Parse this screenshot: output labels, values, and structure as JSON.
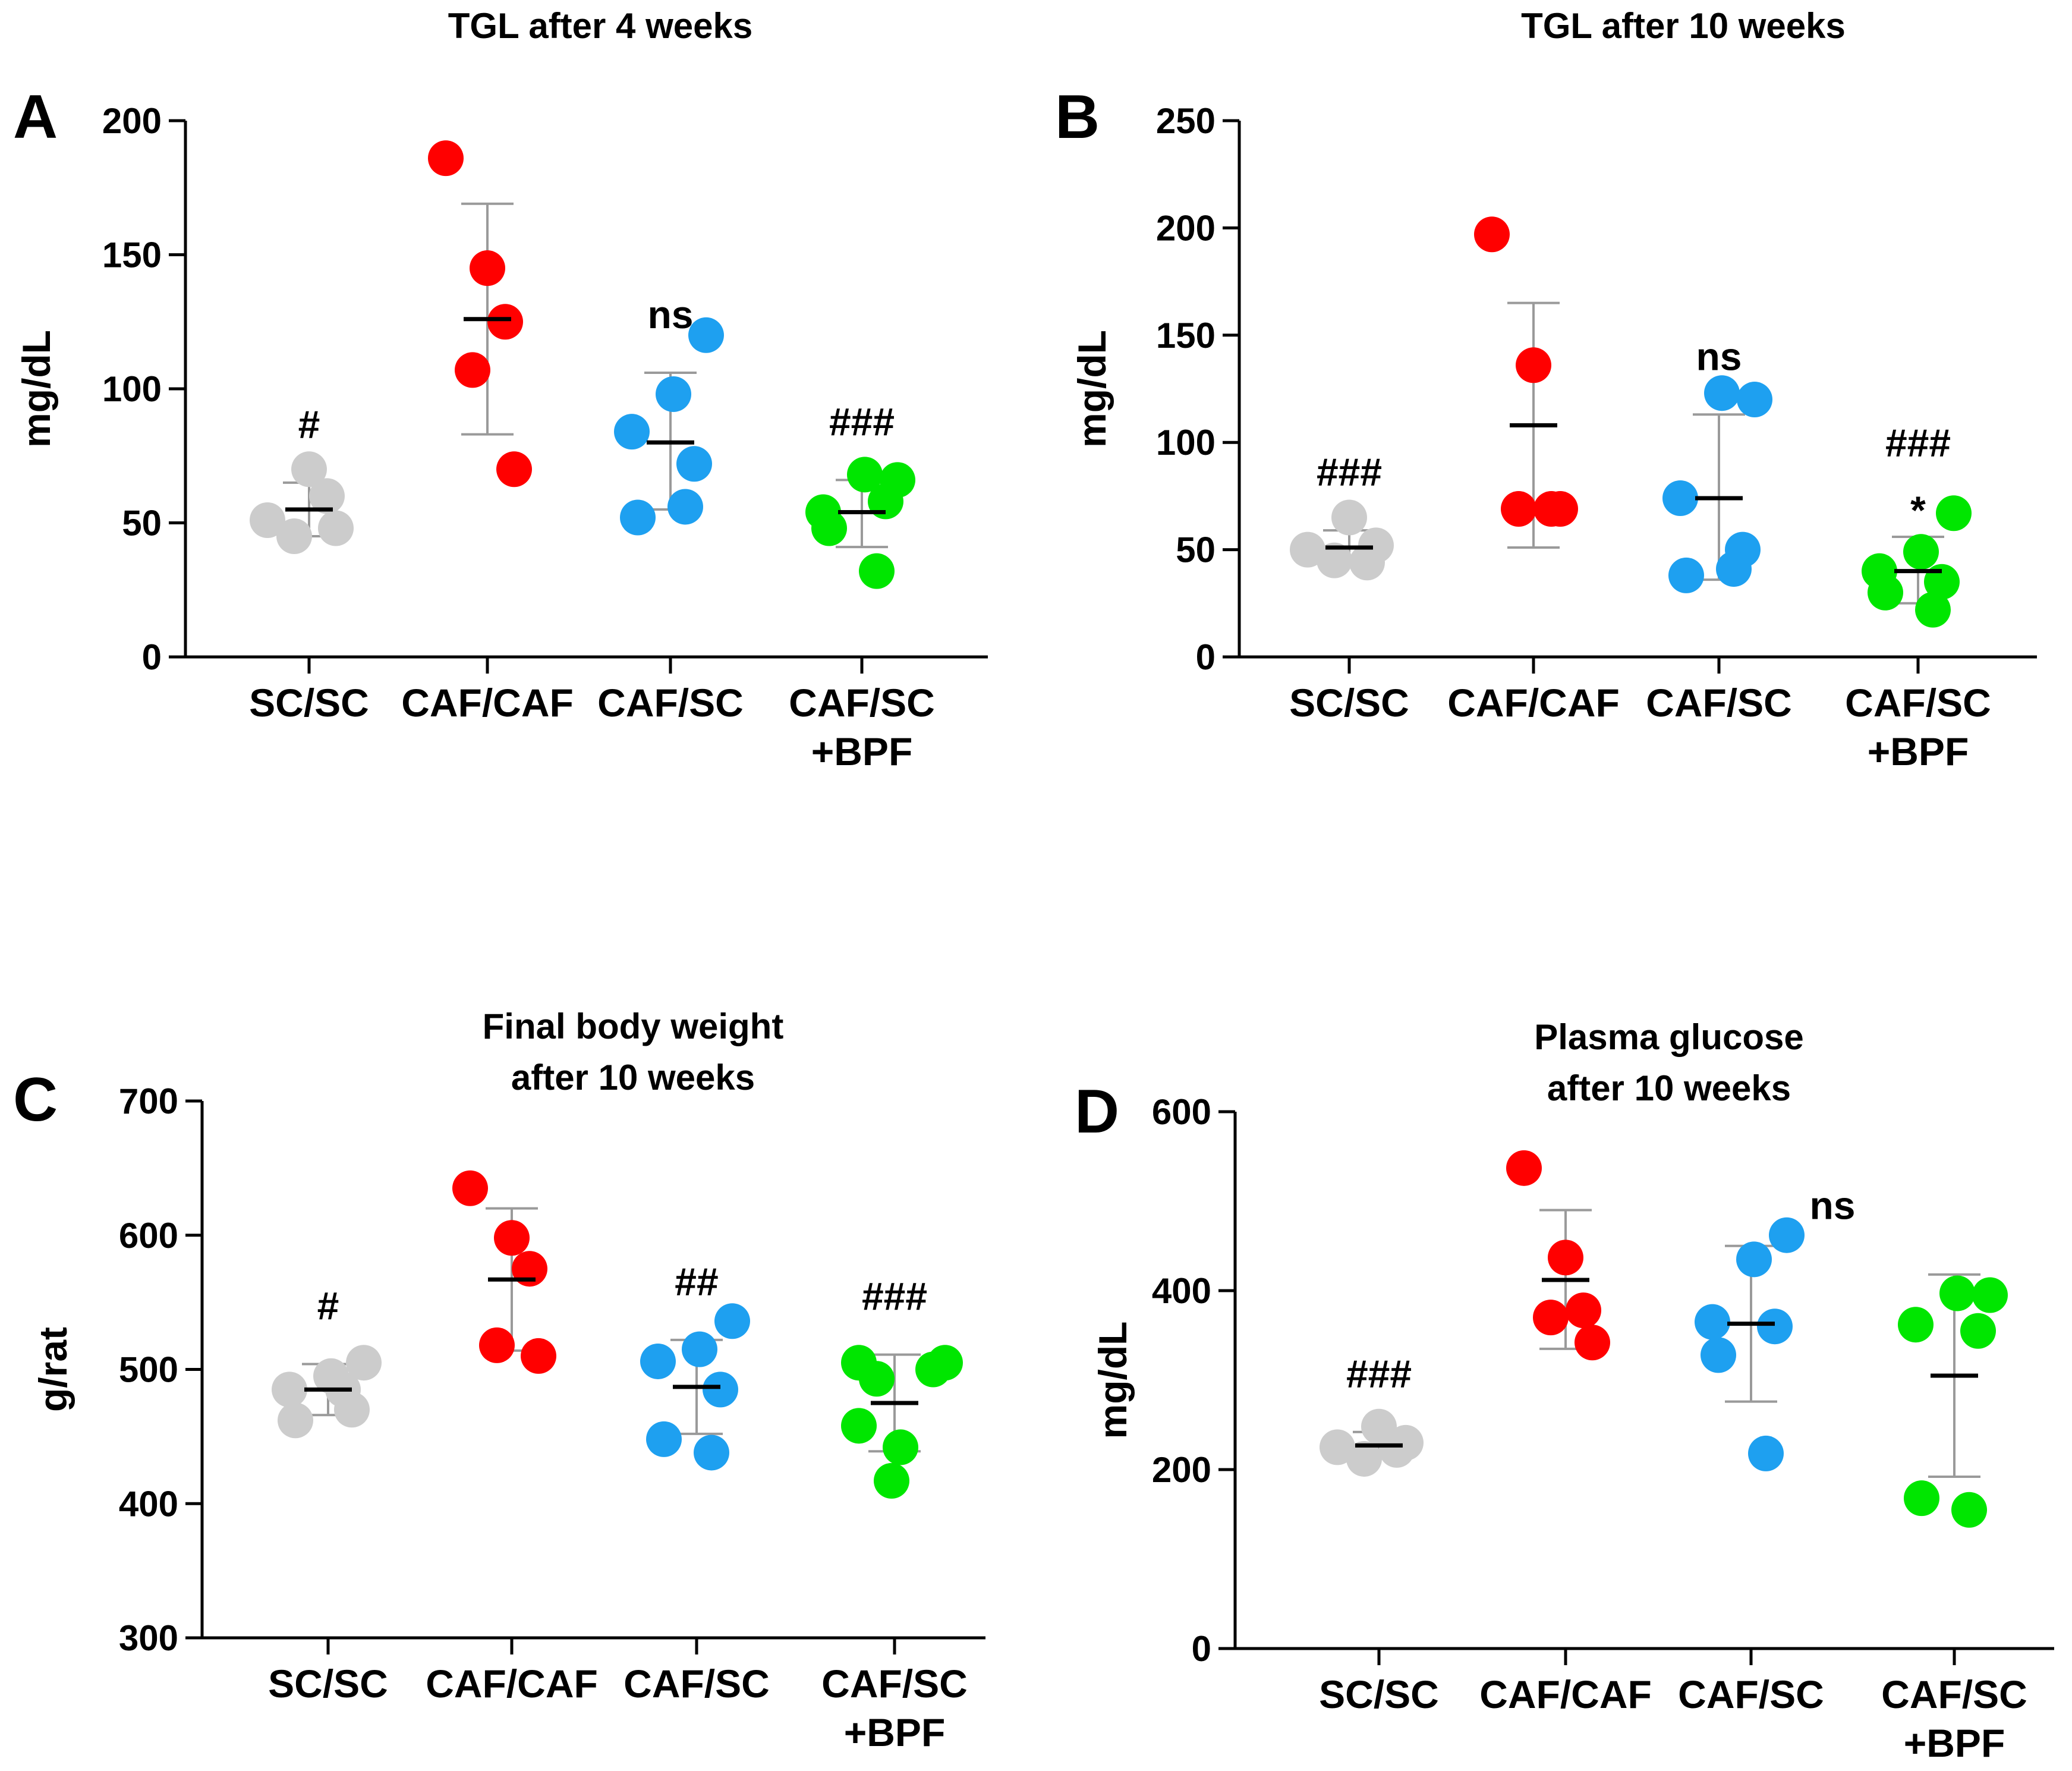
{
  "chart_data": [
    {
      "id": "A",
      "panel_label": "A",
      "type": "scatter",
      "title": [
        "TGL after 4 weeks"
      ],
      "ylabel": "mg/dL",
      "ylim": [
        0,
        200
      ],
      "yticks": [
        0,
        50,
        100,
        150,
        200
      ],
      "categories": [
        [
          "SC/SC"
        ],
        [
          "CAF/CAF"
        ],
        [
          "CAF/SC"
        ],
        [
          "CAF/SC",
          "+BPF"
        ]
      ],
      "colors": [
        "#cccccc",
        "#ff0000",
        "#1ea0f0",
        "#00e600"
      ],
      "series": [
        {
          "name": "SC/SC",
          "points": [
            51,
            70,
            60,
            45,
            48
          ],
          "mean": 55,
          "err": [
            45,
            65
          ],
          "annotations": [
            "#"
          ]
        },
        {
          "name": "CAF/CAF",
          "points": [
            186,
            145,
            125,
            107,
            70
          ],
          "mean": 126,
          "err": [
            83,
            169
          ],
          "annotations": []
        },
        {
          "name": "CAF/SC",
          "points": [
            120,
            98,
            84,
            72,
            52,
            56
          ],
          "mean": 80,
          "err": [
            55,
            106
          ],
          "annotations": [
            "ns"
          ]
        },
        {
          "name": "CAF/SC +BPF",
          "points": [
            66,
            68,
            54,
            58,
            48,
            32
          ],
          "mean": 54,
          "err": [
            41,
            66
          ],
          "annotations": [
            "###"
          ]
        }
      ]
    },
    {
      "id": "B",
      "panel_label": "B",
      "type": "scatter",
      "title": [
        "TGL after 10 weeks"
      ],
      "ylabel": "mg/dL",
      "ylim": [
        0,
        250
      ],
      "yticks": [
        0,
        50,
        100,
        150,
        200,
        250
      ],
      "categories": [
        [
          "SC/SC"
        ],
        [
          "CAF/CAF"
        ],
        [
          "CAF/SC"
        ],
        [
          "CAF/SC",
          "+BPF"
        ]
      ],
      "colors": [
        "#cccccc",
        "#ff0000",
        "#1ea0f0",
        "#00e600"
      ],
      "series": [
        {
          "name": "SC/SC",
          "points": [
            50,
            65,
            44,
            45,
            52
          ],
          "mean": 51,
          "err": [
            43,
            59
          ],
          "annotations": [
            "###"
          ]
        },
        {
          "name": "CAF/CAF",
          "points": [
            197,
            136,
            69,
            69,
            69
          ],
          "mean": 108,
          "err": [
            51,
            165
          ],
          "annotations": []
        },
        {
          "name": "CAF/SC",
          "points": [
            120,
            123,
            74,
            50,
            38,
            41
          ],
          "mean": 74,
          "err": [
            36,
            113
          ],
          "annotations": [
            "ns"
          ]
        },
        {
          "name": "CAF/SC +BPF",
          "points": [
            67,
            49,
            40,
            35,
            30,
            22
          ],
          "mean": 40,
          "err": [
            25,
            56
          ],
          "annotations": [
            "###",
            "*"
          ]
        }
      ]
    },
    {
      "id": "C",
      "panel_label": "C",
      "type": "scatter",
      "title": [
        "Final body weight",
        "after 10 weeks"
      ],
      "ylabel": "g/rat",
      "ylim": [
        300,
        700
      ],
      "yticks": [
        300,
        400,
        500,
        600,
        700
      ],
      "categories": [
        [
          "SC/SC"
        ],
        [
          "CAF/CAF"
        ],
        [
          "CAF/SC"
        ],
        [
          "CAF/SC",
          "+BPF"
        ]
      ],
      "colors": [
        "#cccccc",
        "#ff0000",
        "#1ea0f0",
        "#00e600"
      ],
      "series": [
        {
          "name": "SC/SC",
          "points": [
            505,
            495,
            485,
            470,
            462,
            485
          ],
          "mean": 485,
          "err": [
            466,
            504
          ],
          "annotations": [
            "#"
          ]
        },
        {
          "name": "CAF/CAF",
          "points": [
            635,
            598,
            575,
            518,
            510
          ],
          "mean": 567,
          "err": [
            514,
            620
          ],
          "annotations": []
        },
        {
          "name": "CAF/SC",
          "points": [
            536,
            515,
            506,
            485,
            448,
            438
          ],
          "mean": 487,
          "err": [
            452,
            522
          ],
          "annotations": [
            "##"
          ]
        },
        {
          "name": "CAF/SC +BPF",
          "points": [
            505,
            505,
            500,
            493,
            458,
            442,
            417
          ],
          "mean": 475,
          "err": [
            439,
            511
          ],
          "annotations": [
            "###"
          ]
        }
      ]
    },
    {
      "id": "D",
      "panel_label": "D",
      "type": "scatter",
      "title": [
        "Plasma glucose",
        "after 10 weeks"
      ],
      "ylabel": "mg/dL",
      "ylim": [
        0,
        600
      ],
      "yticks": [
        0,
        200,
        400,
        600
      ],
      "categories": [
        [
          "SC/SC"
        ],
        [
          "CAF/CAF"
        ],
        [
          "CAF/SC"
        ],
        [
          "CAF/SC",
          "+BPF"
        ]
      ],
      "colors": [
        "#cccccc",
        "#ff0000",
        "#1ea0f0",
        "#00e600"
      ],
      "series": [
        {
          "name": "SC/SC",
          "points": [
            225,
            248,
            222,
            212,
            230
          ],
          "mean": 227,
          "err": [
            213,
            242
          ],
          "annotations": [
            "###"
          ]
        },
        {
          "name": "CAF/CAF",
          "points": [
            537,
            437,
            378,
            370,
            342
          ],
          "mean": 412,
          "err": [
            335,
            490
          ],
          "annotations": []
        },
        {
          "name": "CAF/SC",
          "points": [
            462,
            435,
            365,
            360,
            328,
            218
          ],
          "mean": 363,
          "err": [
            276,
            450
          ],
          "annotations": []
        },
        {
          "name": "CAF/SC +BPF",
          "points": [
            395,
            397,
            362,
            355,
            168,
            155
          ],
          "mean": 305,
          "err": [
            192,
            418
          ],
          "annotations": []
        }
      ],
      "extra_annotations": [
        "ns"
      ]
    }
  ]
}
